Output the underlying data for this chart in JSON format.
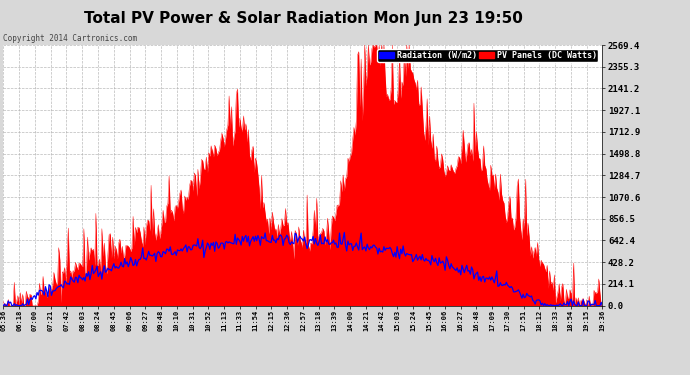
{
  "title": "Total PV Power & Solar Radiation Mon Jun 23 19:50",
  "copyright": "Copyright 2014 Cartronics.com",
  "legend_radiation": "Radiation (W/m2)",
  "legend_pv": "PV Panels (DC Watts)",
  "background_color": "#ffffff",
  "fig_bg_color": "#d8d8d8",
  "title_color": "#000000",
  "pv_color": "#ff0000",
  "radiation_color": "#0000ff",
  "grid_color": "#aaaaaa",
  "y_max": 2569.4,
  "y_ticks": [
    0.0,
    214.1,
    428.2,
    642.4,
    856.5,
    1070.6,
    1284.7,
    1498.8,
    1712.9,
    1927.1,
    2141.2,
    2355.3,
    2569.4
  ],
  "x_labels": [
    "05:36",
    "06:18",
    "07:00",
    "07:21",
    "07:42",
    "08:03",
    "08:24",
    "08:45",
    "09:06",
    "09:27",
    "09:48",
    "10:10",
    "10:31",
    "10:52",
    "11:13",
    "11:33",
    "11:54",
    "12:15",
    "12:36",
    "12:57",
    "13:18",
    "13:39",
    "14:00",
    "14:21",
    "14:42",
    "15:03",
    "15:24",
    "15:45",
    "16:06",
    "16:27",
    "16:48",
    "17:09",
    "17:30",
    "17:51",
    "18:12",
    "18:33",
    "18:54",
    "19:15",
    "19:36"
  ],
  "n_points": 500,
  "seed": 12
}
